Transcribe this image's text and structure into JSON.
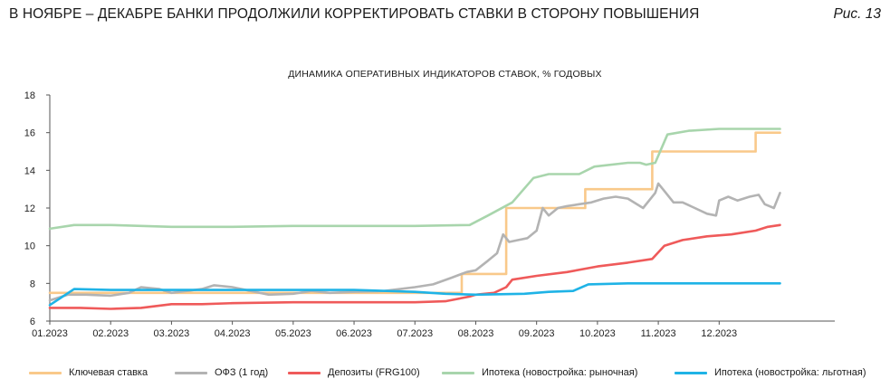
{
  "header": {
    "title": "В НОЯБРЕ – ДЕКАБРЕ БАНКИ ПРОДОЛЖИЛИ КОРРЕКТИРОВАТЬ СТАВКИ В СТОРОНУ ПОВЫШЕНИЯ",
    "figure_label": "Рис. 13"
  },
  "chart_data": {
    "type": "line",
    "title": "ДИНАМИКА ОПЕРАТИВНЫХ ИНДИКАТОРОВ СТАВОК, % ГОДОВЫХ",
    "xlabel": "",
    "ylabel": "",
    "ylim": [
      6,
      18
    ],
    "yticks": [
      6,
      8,
      10,
      12,
      14,
      16,
      18
    ],
    "xlim": [
      0,
      12.9
    ],
    "xticks": [
      {
        "x": 0,
        "label": "01.2023"
      },
      {
        "x": 1,
        "label": "02.2023"
      },
      {
        "x": 2,
        "label": "03.2023"
      },
      {
        "x": 3,
        "label": "04.2023"
      },
      {
        "x": 4,
        "label": "05.2023"
      },
      {
        "x": 5,
        "label": "06.2023"
      },
      {
        "x": 6,
        "label": "07.2023"
      },
      {
        "x": 7,
        "label": "08.2023"
      },
      {
        "x": 8,
        "label": "09.2023"
      },
      {
        "x": 9,
        "label": "10.2023"
      },
      {
        "x": 10,
        "label": "11.2023"
      },
      {
        "x": 11,
        "label": "12.2023"
      }
    ],
    "grid": false,
    "legend_position": "bottom",
    "series": [
      {
        "name": "Ключевая ставка",
        "color": "#f9c98a",
        "points": [
          [
            0,
            7.5
          ],
          [
            6.77,
            7.5
          ],
          [
            6.77,
            8.5
          ],
          [
            7.5,
            8.5
          ],
          [
            7.5,
            12
          ],
          [
            8.8,
            12
          ],
          [
            8.8,
            13
          ],
          [
            9.9,
            13
          ],
          [
            9.9,
            15
          ],
          [
            11.6,
            15
          ],
          [
            11.6,
            16
          ],
          [
            12.0,
            16
          ]
        ]
      },
      {
        "name": "ОФЗ (1 год)",
        "color": "#b3b3b3",
        "points": [
          [
            0,
            7.1
          ],
          [
            0.3,
            7.4
          ],
          [
            0.6,
            7.4
          ],
          [
            1,
            7.35
          ],
          [
            1.3,
            7.5
          ],
          [
            1.5,
            7.8
          ],
          [
            1.8,
            7.7
          ],
          [
            2,
            7.5
          ],
          [
            2.5,
            7.7
          ],
          [
            2.7,
            7.9
          ],
          [
            3,
            7.8
          ],
          [
            3.3,
            7.6
          ],
          [
            3.6,
            7.4
          ],
          [
            4,
            7.45
          ],
          [
            4.3,
            7.6
          ],
          [
            4.6,
            7.5
          ],
          [
            5,
            7.55
          ],
          [
            5.5,
            7.6
          ],
          [
            6,
            7.8
          ],
          [
            6.3,
            7.95
          ],
          [
            6.6,
            8.3
          ],
          [
            6.85,
            8.6
          ],
          [
            7.0,
            8.7
          ],
          [
            7.2,
            9.2
          ],
          [
            7.35,
            9.6
          ],
          [
            7.45,
            10.6
          ],
          [
            7.55,
            10.2
          ],
          [
            7.7,
            10.3
          ],
          [
            7.85,
            10.4
          ],
          [
            8.0,
            10.8
          ],
          [
            8.1,
            12.0
          ],
          [
            8.2,
            11.6
          ],
          [
            8.35,
            12.0
          ],
          [
            8.5,
            12.1
          ],
          [
            8.7,
            12.2
          ],
          [
            8.9,
            12.3
          ],
          [
            9.1,
            12.5
          ],
          [
            9.3,
            12.6
          ],
          [
            9.5,
            12.5
          ],
          [
            9.75,
            12.0
          ],
          [
            9.95,
            12.8
          ],
          [
            10.0,
            13.3
          ],
          [
            10.1,
            12.9
          ],
          [
            10.25,
            12.3
          ],
          [
            10.4,
            12.3
          ],
          [
            10.6,
            12.0
          ],
          [
            10.8,
            11.7
          ],
          [
            10.95,
            11.6
          ],
          [
            11.0,
            12.4
          ],
          [
            11.15,
            12.6
          ],
          [
            11.3,
            12.4
          ],
          [
            11.5,
            12.6
          ],
          [
            11.65,
            12.7
          ],
          [
            11.75,
            12.2
          ],
          [
            11.9,
            12.0
          ],
          [
            12.0,
            12.8
          ]
        ]
      },
      {
        "name": "Депозиты (FRG100)",
        "color": "#ef5a5a",
        "points": [
          [
            0,
            6.7
          ],
          [
            0.5,
            6.7
          ],
          [
            1,
            6.65
          ],
          [
            1.5,
            6.7
          ],
          [
            2,
            6.9
          ],
          [
            2.5,
            6.9
          ],
          [
            3,
            6.95
          ],
          [
            4,
            7.0
          ],
          [
            5,
            7.0
          ],
          [
            6,
            7.0
          ],
          [
            6.5,
            7.05
          ],
          [
            6.9,
            7.3
          ],
          [
            7.0,
            7.4
          ],
          [
            7.3,
            7.5
          ],
          [
            7.5,
            7.8
          ],
          [
            7.6,
            8.2
          ],
          [
            8.0,
            8.4
          ],
          [
            8.5,
            8.6
          ],
          [
            9.0,
            8.9
          ],
          [
            9.5,
            9.1
          ],
          [
            9.9,
            9.3
          ],
          [
            10.1,
            10.0
          ],
          [
            10.4,
            10.3
          ],
          [
            10.8,
            10.5
          ],
          [
            11.2,
            10.6
          ],
          [
            11.6,
            10.8
          ],
          [
            11.8,
            11.0
          ],
          [
            12.0,
            11.1
          ]
        ]
      },
      {
        "name": "Ипотека (новостройка: рыночная)",
        "color": "#a8d5ac",
        "points": [
          [
            0,
            10.9
          ],
          [
            0.4,
            11.1
          ],
          [
            1,
            11.1
          ],
          [
            2,
            11.0
          ],
          [
            3,
            11.0
          ],
          [
            4,
            11.05
          ],
          [
            5,
            11.05
          ],
          [
            6,
            11.05
          ],
          [
            6.9,
            11.1
          ],
          [
            7.2,
            11.6
          ],
          [
            7.6,
            12.3
          ],
          [
            7.95,
            13.6
          ],
          [
            8.2,
            13.8
          ],
          [
            8.7,
            13.8
          ],
          [
            8.95,
            14.2
          ],
          [
            9.5,
            14.4
          ],
          [
            9.7,
            14.4
          ],
          [
            9.8,
            14.3
          ],
          [
            9.95,
            14.4
          ],
          [
            10.15,
            15.9
          ],
          [
            10.5,
            16.1
          ],
          [
            11.0,
            16.2
          ],
          [
            11.5,
            16.2
          ],
          [
            12.0,
            16.2
          ]
        ]
      },
      {
        "name": "Ипотека (новостройка: льготная)",
        "color": "#1fb3e6",
        "points": [
          [
            0,
            6.85
          ],
          [
            0.4,
            7.7
          ],
          [
            1,
            7.65
          ],
          [
            2,
            7.65
          ],
          [
            3,
            7.65
          ],
          [
            4,
            7.65
          ],
          [
            5,
            7.65
          ],
          [
            6,
            7.55
          ],
          [
            6.5,
            7.45
          ],
          [
            7,
            7.4
          ],
          [
            7.8,
            7.45
          ],
          [
            8.2,
            7.55
          ],
          [
            8.6,
            7.6
          ],
          [
            8.85,
            7.95
          ],
          [
            9.5,
            8.0
          ],
          [
            10,
            8.0
          ],
          [
            11,
            8.0
          ],
          [
            12,
            8.0
          ]
        ]
      }
    ]
  }
}
